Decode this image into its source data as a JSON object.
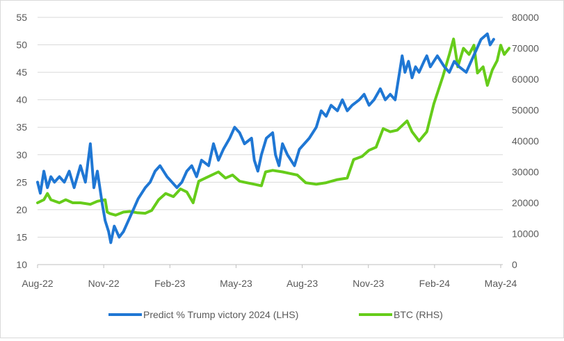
{
  "chart_data": {
    "type": "line",
    "x_tick_labels": [
      "Aug-22",
      "Nov-22",
      "Feb-23",
      "May-23",
      "Aug-23",
      "Nov-23",
      "Feb-24",
      "May-24"
    ],
    "left_axis": {
      "ylim": [
        10,
        55
      ],
      "ticks": [
        "10",
        "15",
        "20",
        "25",
        "30",
        "35",
        "40",
        "45",
        "50",
        "55"
      ]
    },
    "right_axis": {
      "ylim": [
        0,
        80000
      ],
      "ticks": [
        "0",
        "10000",
        "20000",
        "30000",
        "40000",
        "50000",
        "60000",
        "70000",
        "80000"
      ]
    },
    "grid": "horizontal",
    "legend_position": "bottom",
    "series": [
      {
        "name": "Predict % Trump victory 2024 (LHS)",
        "axis": "left",
        "color": "#1f77d4",
        "points": [
          [
            "2022-08-01",
            25
          ],
          [
            "2022-08-05",
            23
          ],
          [
            "2022-08-10",
            27
          ],
          [
            "2022-08-15",
            24
          ],
          [
            "2022-08-20",
            26
          ],
          [
            "2022-08-25",
            25
          ],
          [
            "2022-09-01",
            26
          ],
          [
            "2022-09-08",
            25
          ],
          [
            "2022-09-15",
            27
          ],
          [
            "2022-09-22",
            24
          ],
          [
            "2022-10-01",
            28
          ],
          [
            "2022-10-08",
            25
          ],
          [
            "2022-10-15",
            32
          ],
          [
            "2022-10-20",
            24
          ],
          [
            "2022-10-25",
            27
          ],
          [
            "2022-11-01",
            21
          ],
          [
            "2022-11-05",
            18
          ],
          [
            "2022-11-10",
            16
          ],
          [
            "2022-11-13",
            14
          ],
          [
            "2022-11-18",
            17
          ],
          [
            "2022-11-25",
            15
          ],
          [
            "2022-12-01",
            16
          ],
          [
            "2022-12-08",
            18
          ],
          [
            "2022-12-15",
            20
          ],
          [
            "2022-12-22",
            22
          ],
          [
            "2023-01-01",
            24
          ],
          [
            "2023-01-08",
            25
          ],
          [
            "2023-01-15",
            27
          ],
          [
            "2023-01-22",
            28
          ],
          [
            "2023-02-01",
            26
          ],
          [
            "2023-02-08",
            25
          ],
          [
            "2023-02-15",
            24
          ],
          [
            "2023-02-22",
            25
          ],
          [
            "2023-03-01",
            27
          ],
          [
            "2023-03-08",
            28
          ],
          [
            "2023-03-15",
            26
          ],
          [
            "2023-03-22",
            29
          ],
          [
            "2023-04-01",
            28
          ],
          [
            "2023-04-08",
            32
          ],
          [
            "2023-04-15",
            29
          ],
          [
            "2023-04-22",
            31
          ],
          [
            "2023-05-01",
            33
          ],
          [
            "2023-05-08",
            35
          ],
          [
            "2023-05-15",
            34
          ],
          [
            "2023-05-22",
            32
          ],
          [
            "2023-06-01",
            33
          ],
          [
            "2023-06-05",
            29
          ],
          [
            "2023-06-10",
            27
          ],
          [
            "2023-06-15",
            30
          ],
          [
            "2023-06-22",
            33
          ],
          [
            "2023-07-01",
            34
          ],
          [
            "2023-07-05",
            30
          ],
          [
            "2023-07-10",
            28
          ],
          [
            "2023-07-15",
            32
          ],
          [
            "2023-07-22",
            30
          ],
          [
            "2023-08-01",
            28
          ],
          [
            "2023-08-08",
            31
          ],
          [
            "2023-08-15",
            32
          ],
          [
            "2023-08-22",
            33
          ],
          [
            "2023-09-01",
            35
          ],
          [
            "2023-09-08",
            38
          ],
          [
            "2023-09-15",
            37
          ],
          [
            "2023-09-22",
            39
          ],
          [
            "2023-10-01",
            38
          ],
          [
            "2023-10-08",
            40
          ],
          [
            "2023-10-15",
            38
          ],
          [
            "2023-10-22",
            39
          ],
          [
            "2023-11-01",
            40
          ],
          [
            "2023-11-08",
            41
          ],
          [
            "2023-11-15",
            39
          ],
          [
            "2023-11-22",
            40
          ],
          [
            "2023-12-01",
            42
          ],
          [
            "2023-12-08",
            40
          ],
          [
            "2023-12-15",
            41
          ],
          [
            "2023-12-22",
            40
          ],
          [
            "2024-01-01",
            48
          ],
          [
            "2024-01-05",
            45
          ],
          [
            "2024-01-10",
            47
          ],
          [
            "2024-01-15",
            44
          ],
          [
            "2024-01-20",
            46
          ],
          [
            "2024-01-25",
            45
          ],
          [
            "2024-02-01",
            47
          ],
          [
            "2024-02-05",
            48
          ],
          [
            "2024-02-10",
            46
          ],
          [
            "2024-02-15",
            47
          ],
          [
            "2024-02-20",
            48
          ],
          [
            "2024-03-01",
            46
          ],
          [
            "2024-03-08",
            45
          ],
          [
            "2024-03-15",
            47
          ],
          [
            "2024-03-22",
            46
          ],
          [
            "2024-04-01",
            45
          ],
          [
            "2024-04-08",
            47
          ],
          [
            "2024-04-15",
            49
          ],
          [
            "2024-04-22",
            51
          ],
          [
            "2024-05-01",
            52
          ],
          [
            "2024-05-05",
            50
          ],
          [
            "2024-05-10",
            51
          ]
        ]
      },
      {
        "name": "BTC (RHS)",
        "axis": "right",
        "color": "#66cc1a",
        "points": [
          [
            "2022-08-01",
            20000
          ],
          [
            "2022-08-10",
            21000
          ],
          [
            "2022-08-15",
            23000
          ],
          [
            "2022-08-20",
            21000
          ],
          [
            "2022-09-01",
            20000
          ],
          [
            "2022-09-10",
            21000
          ],
          [
            "2022-09-20",
            20000
          ],
          [
            "2022-10-01",
            20000
          ],
          [
            "2022-10-15",
            19500
          ],
          [
            "2022-10-25",
            20500
          ],
          [
            "2022-11-05",
            21000
          ],
          [
            "2022-11-08",
            17000
          ],
          [
            "2022-11-12",
            16500
          ],
          [
            "2022-11-20",
            16000
          ],
          [
            "2022-12-01",
            17000
          ],
          [
            "2022-12-10",
            17200
          ],
          [
            "2022-12-20",
            16800
          ],
          [
            "2023-01-01",
            16600
          ],
          [
            "2023-01-10",
            17500
          ],
          [
            "2023-01-20",
            21000
          ],
          [
            "2023-01-30",
            23000
          ],
          [
            "2023-02-10",
            22000
          ],
          [
            "2023-02-20",
            24500
          ],
          [
            "2023-03-01",
            23500
          ],
          [
            "2023-03-10",
            20000
          ],
          [
            "2023-03-18",
            27000
          ],
          [
            "2023-04-01",
            28500
          ],
          [
            "2023-04-15",
            30000
          ],
          [
            "2023-04-25",
            28000
          ],
          [
            "2023-05-05",
            29000
          ],
          [
            "2023-05-15",
            27000
          ],
          [
            "2023-05-25",
            26500
          ],
          [
            "2023-06-05",
            26000
          ],
          [
            "2023-06-15",
            25500
          ],
          [
            "2023-06-21",
            30000
          ],
          [
            "2023-07-01",
            30500
          ],
          [
            "2023-07-15",
            30000
          ],
          [
            "2023-07-25",
            29500
          ],
          [
            "2023-08-05",
            29000
          ],
          [
            "2023-08-17",
            26500
          ],
          [
            "2023-09-01",
            26000
          ],
          [
            "2023-09-15",
            26500
          ],
          [
            "2023-10-01",
            27500
          ],
          [
            "2023-10-15",
            28000
          ],
          [
            "2023-10-24",
            34000
          ],
          [
            "2023-11-05",
            35000
          ],
          [
            "2023-11-15",
            37000
          ],
          [
            "2023-11-25",
            38000
          ],
          [
            "2023-12-05",
            44000
          ],
          [
            "2023-12-15",
            43000
          ],
          [
            "2023-12-25",
            43500
          ],
          [
            "2024-01-08",
            46500
          ],
          [
            "2024-01-15",
            43000
          ],
          [
            "2024-01-25",
            40000
          ],
          [
            "2024-02-05",
            43000
          ],
          [
            "2024-02-15",
            52000
          ],
          [
            "2024-02-28",
            61000
          ],
          [
            "2024-03-08",
            68000
          ],
          [
            "2024-03-14",
            73000
          ],
          [
            "2024-03-20",
            64000
          ],
          [
            "2024-03-28",
            70000
          ],
          [
            "2024-04-05",
            68000
          ],
          [
            "2024-04-12",
            71000
          ],
          [
            "2024-04-17",
            62000
          ],
          [
            "2024-04-25",
            64000
          ],
          [
            "2024-05-01",
            58000
          ],
          [
            "2024-05-08",
            63000
          ],
          [
            "2024-05-15",
            66000
          ],
          [
            "2024-05-20",
            71000
          ],
          [
            "2024-05-25",
            68000
          ],
          [
            "2024-06-01",
            70000
          ]
        ]
      }
    ]
  }
}
